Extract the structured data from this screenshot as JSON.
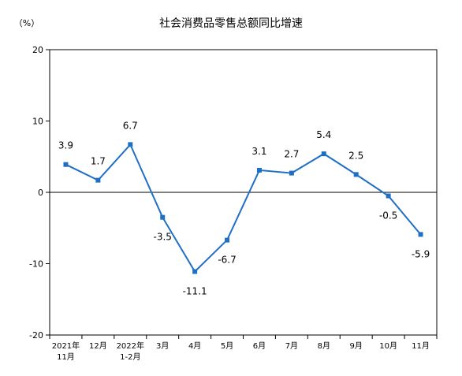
{
  "chart_data": {
    "type": "line",
    "title": "社会消费品零售总额同比增速",
    "unit_label": "（%）",
    "categories": [
      [
        "2021年",
        "11月"
      ],
      [
        "12月"
      ],
      [
        "2022年",
        "1-2月"
      ],
      [
        "3月"
      ],
      [
        "4月"
      ],
      [
        "5月"
      ],
      [
        "6月"
      ],
      [
        "7月"
      ],
      [
        "8月"
      ],
      [
        "9月"
      ],
      [
        "10月"
      ],
      [
        "11月"
      ]
    ],
    "series": [
      {
        "values": [
          3.9,
          1.7,
          6.7,
          -3.5,
          -11.1,
          -6.7,
          3.1,
          2.7,
          5.4,
          2.5,
          -0.5,
          -5.9
        ],
        "labels": [
          "3.9",
          "1.7",
          "6.7",
          "-3.5",
          "-11.1",
          "-6.7",
          "3.1",
          "2.7",
          "5.4",
          "2.5",
          "-0.5",
          "-5.9"
        ],
        "label_positions": [
          "above",
          "above",
          "above",
          "below",
          "below",
          "below",
          "above",
          "above",
          "above",
          "above",
          "below",
          "below"
        ]
      }
    ],
    "ylim": [
      -20,
      20
    ],
    "yticks": [
      20,
      10,
      0,
      -10,
      -20
    ],
    "grid": false,
    "line_color": "#1f6fc5",
    "axis_color": "#000000"
  }
}
